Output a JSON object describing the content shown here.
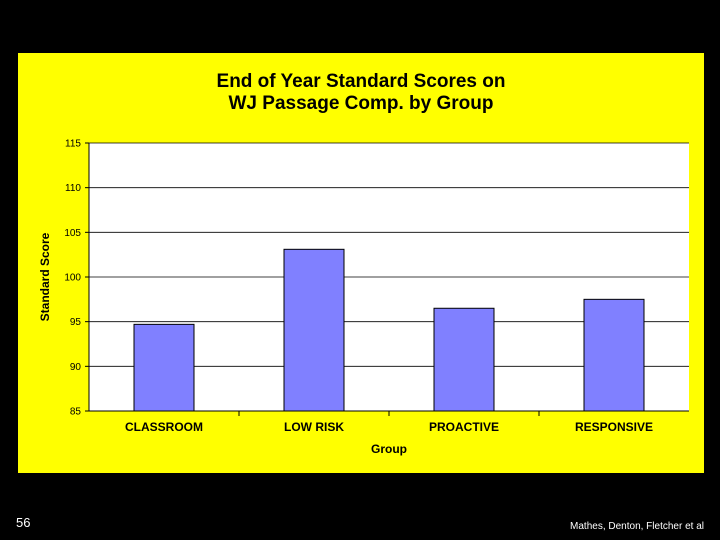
{
  "slide": {
    "number": "56",
    "credit": "Mathes, Denton, Fletcher et al"
  },
  "colors": {
    "panel_bg": "#ffff00",
    "plot_bg": "#ffffff",
    "bar_fill": "#8080ff",
    "bar_stroke": "#000000"
  },
  "chart_data": {
    "type": "bar",
    "title": [
      "End of Year Standard Scores on",
      "WJ Passage Comp. by Group"
    ],
    "xlabel": "Group",
    "ylabel": "Standard Score",
    "categories": [
      "CLASSROOM",
      "LOW RISK",
      "PROACTIVE",
      "RESPONSIVE"
    ],
    "values": [
      94.7,
      103.1,
      96.5,
      97.5
    ],
    "ylim": [
      85,
      115
    ],
    "yticks": [
      85,
      90,
      95,
      100,
      105,
      110,
      115
    ],
    "grid": true,
    "legend": "none"
  }
}
